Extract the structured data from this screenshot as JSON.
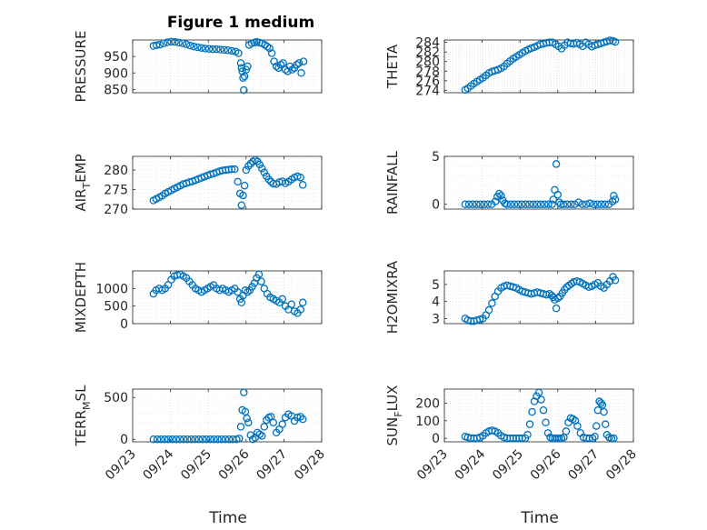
{
  "figure": {
    "title": "Figure 1 medium"
  },
  "chart_data": {
    "type": "scatter",
    "xlabel": "Time",
    "xlim": [
      "09/23",
      "09/28"
    ],
    "x_ticks": [
      "09/23",
      "09/24",
      "09/25",
      "09/26",
      "09/27",
      "09/28"
    ],
    "grid": true,
    "marker": "open-circle",
    "color": "#0072BD",
    "panels": [
      {
        "ylabel": "PRESSURE",
        "ylim": [
          840,
          1000
        ],
        "y_ticks": [
          850,
          900,
          950
        ],
        "series": [
          {
            "x": [
              0.55,
              0.63,
              0.72,
              0.82,
              0.92,
              1.02,
              1.12,
              1.22,
              1.32,
              1.42,
              1.52,
              1.62,
              1.72,
              1.82,
              1.92,
              2.02,
              2.12,
              2.22,
              2.32,
              2.42,
              2.52,
              2.62,
              2.72,
              2.8,
              2.86,
              2.88,
              2.9,
              2.92,
              2.94,
              2.96,
              3.0,
              3.04,
              3.08,
              3.15,
              3.22,
              3.28,
              3.35,
              3.42,
              3.5,
              3.56,
              3.62,
              3.68,
              3.74,
              3.8,
              3.86,
              3.92,
              3.98,
              4.04,
              4.1,
              4.16,
              4.22,
              4.28,
              4.34,
              4.4,
              4.46,
              4.52
            ],
            "y": [
              982,
              984,
              986,
              990,
              993,
              995,
              994,
              992,
              990,
              987,
              983,
              980,
              978,
              976,
              974,
              973,
              972,
              972,
              971,
              970,
              969,
              967,
              965,
              960,
              930,
              915,
              905,
              885,
              848,
              890,
              910,
              920,
              985,
              990,
              992,
              994,
              992,
              990,
              985,
              980,
              975,
              960,
              935,
              920,
              915,
              925,
              930,
              910,
              905,
              920,
              910,
              915,
              925,
              930,
              900,
              935
            ]
          }
        ]
      },
      {
        "ylabel": "THETA",
        "ylim": [
          273.5,
          284.5
        ],
        "y_ticks": [
          274,
          276,
          278,
          280,
          282,
          284
        ],
        "series": [
          {
            "x": [
              0.55,
              0.62,
              0.7,
              0.78,
              0.86,
              0.94,
              1.02,
              1.1,
              1.18,
              1.26,
              1.34,
              1.42,
              1.5,
              1.58,
              1.66,
              1.74,
              1.82,
              1.9,
              1.98,
              2.06,
              2.14,
              2.22,
              2.3,
              2.38,
              2.46,
              2.54,
              2.62,
              2.7,
              2.78,
              2.86,
              2.94,
              3.02,
              3.1,
              3.18,
              3.26,
              3.34,
              3.42,
              3.5,
              3.58,
              3.66,
              3.74,
              3.82,
              3.9,
              3.98,
              4.06,
              4.14,
              4.22,
              4.3,
              4.38,
              4.46,
              4.52
            ],
            "y": [
              274.1,
              274.4,
              274.9,
              275.4,
              275.8,
              276.2,
              276.6,
              277.1,
              277.6,
              277.9,
              278.1,
              278.3,
              278.6,
              279.0,
              279.6,
              280.1,
              280.6,
              281.0,
              281.4,
              281.8,
              282.2,
              282.5,
              282.8,
              283.0,
              283.3,
              283.6,
              283.7,
              283.9,
              284.0,
              284.0,
              283.6,
              283.2,
              282.7,
              283.4,
              284.0,
              283.8,
              283.7,
              283.9,
              283.6,
              283.2,
              284.0,
              283.6,
              283.1,
              283.4,
              283.6,
              283.8,
              284.0,
              284.2,
              284.4,
              284.3,
              284.1
            ]
          }
        ]
      },
      {
        "ylabel": "AIR_TEMP",
        "ylim": [
          270,
          283.5
        ],
        "y_ticks": [
          270,
          275,
          280
        ],
        "series": [
          {
            "x": [
              0.55,
              0.62,
              0.7,
              0.78,
              0.86,
              0.94,
              1.02,
              1.1,
              1.18,
              1.26,
              1.34,
              1.42,
              1.5,
              1.58,
              1.66,
              1.74,
              1.82,
              1.9,
              1.98,
              2.06,
              2.14,
              2.22,
              2.3,
              2.38,
              2.46,
              2.54,
              2.62,
              2.7,
              2.78,
              2.84,
              2.88,
              2.92,
              2.96,
              3.0,
              3.06,
              3.12,
              3.18,
              3.24,
              3.3,
              3.36,
              3.42,
              3.48,
              3.54,
              3.6,
              3.66,
              3.72,
              3.8,
              3.88,
              3.96,
              4.04,
              4.12,
              4.2,
              4.28,
              4.36,
              4.44,
              4.5
            ],
            "y": [
              272.2,
              272.6,
              273.0,
              273.4,
              274.0,
              274.4,
              274.8,
              275.2,
              275.6,
              276.0,
              276.4,
              276.6,
              276.9,
              277.1,
              277.4,
              277.7,
              278.0,
              278.3,
              278.6,
              278.9,
              279.1,
              279.4,
              279.7,
              279.9,
              280.0,
              280.1,
              280.2,
              280.2,
              277.0,
              274.0,
              271.0,
              273.5,
              276.0,
              280.0,
              281.0,
              281.6,
              282.2,
              282.6,
              282.2,
              281.4,
              280.4,
              279.4,
              278.4,
              277.6,
              277.0,
              276.5,
              276.4,
              276.9,
              277.1,
              276.6,
              277.0,
              277.6,
              278.1,
              278.4,
              278.1,
              276.2
            ]
          }
        ]
      },
      {
        "ylabel": "RAINFALL",
        "ylim": [
          -0.5,
          5
        ],
        "y_ticks": [
          0,
          5
        ],
        "series": [
          {
            "x": [
              0.55,
              0.65,
              0.75,
              0.85,
              0.95,
              1.05,
              1.15,
              1.25,
              1.35,
              1.4,
              1.45,
              1.5,
              1.55,
              1.6,
              1.65,
              1.75,
              1.85,
              1.95,
              2.05,
              2.15,
              2.25,
              2.35,
              2.45,
              2.55,
              2.65,
              2.75,
              2.85,
              2.88,
              2.92,
              2.96,
              3.0,
              3.04,
              3.08,
              3.15,
              3.25,
              3.35,
              3.45,
              3.55,
              3.65,
              3.75,
              3.85,
              3.95,
              4.05,
              4.15,
              4.25,
              4.35,
              4.45,
              4.48,
              4.52
            ],
            "y": [
              0,
              0,
              0,
              0,
              0,
              0,
              0,
              0,
              0.3,
              0.8,
              1.1,
              0.9,
              0.4,
              0.1,
              0,
              0,
              0,
              0,
              0,
              0,
              0,
              0,
              0,
              0,
              0,
              0,
              0,
              0.5,
              1.5,
              4.2,
              1.0,
              0.2,
              0,
              0,
              0,
              0,
              0,
              0.2,
              0,
              0,
              0.1,
              0,
              0,
              0,
              0,
              0,
              0.3,
              0.9,
              0.5
            ]
          }
        ]
      },
      {
        "ylabel": "MIXDEPTH",
        "ylim": [
          0,
          1500
        ],
        "y_ticks": [
          0,
          500,
          1000
        ],
        "series": [
          {
            "x": [
              0.55,
              0.62,
              0.7,
              0.78,
              0.86,
              0.94,
              1.02,
              1.1,
              1.18,
              1.26,
              1.34,
              1.42,
              1.5,
              1.58,
              1.66,
              1.74,
              1.82,
              1.9,
              1.98,
              2.06,
              2.14,
              2.22,
              2.3,
              2.38,
              2.46,
              2.54,
              2.62,
              2.7,
              2.78,
              2.84,
              2.88,
              2.92,
              2.98,
              3.04,
              3.1,
              3.16,
              3.22,
              3.28,
              3.34,
              3.4,
              3.48,
              3.56,
              3.64,
              3.72,
              3.8,
              3.88,
              3.96,
              4.04,
              4.12,
              4.2,
              4.28,
              4.36,
              4.44,
              4.5
            ],
            "y": [
              850,
              950,
              1000,
              950,
              1000,
              1100,
              1250,
              1350,
              1380,
              1400,
              1350,
              1300,
              1200,
              1100,
              1000,
              950,
              900,
              950,
              1000,
              1050,
              1100,
              1000,
              950,
              1000,
              950,
              900,
              950,
              1000,
              900,
              700,
              600,
              800,
              950,
              900,
              950,
              1050,
              1150,
              1300,
              1400,
              1200,
              1000,
              850,
              750,
              700,
              650,
              600,
              700,
              500,
              400,
              550,
              350,
              300,
              400,
              600
            ]
          }
        ]
      },
      {
        "ylabel": "H2OMIXRA",
        "ylim": [
          2.7,
          5.8
        ],
        "y_ticks": [
          3,
          4,
          5
        ],
        "series": [
          {
            "x": [
              0.55,
              0.62,
              0.7,
              0.78,
              0.86,
              0.94,
              1.02,
              1.1,
              1.18,
              1.26,
              1.34,
              1.42,
              1.5,
              1.58,
              1.66,
              1.74,
              1.82,
              1.9,
              1.98,
              2.06,
              2.14,
              2.22,
              2.3,
              2.38,
              2.46,
              2.54,
              2.62,
              2.7,
              2.78,
              2.84,
              2.88,
              2.92,
              2.96,
              3.0,
              3.06,
              3.12,
              3.18,
              3.24,
              3.3,
              3.36,
              3.42,
              3.5,
              3.58,
              3.66,
              3.74,
              3.82,
              3.9,
              3.98,
              4.06,
              4.14,
              4.22,
              4.3,
              4.38,
              4.46,
              4.52
            ],
            "y": [
              3.0,
              2.9,
              2.85,
              2.85,
              2.9,
              2.95,
              3.0,
              3.2,
              3.5,
              3.9,
              4.3,
              4.6,
              4.8,
              4.9,
              4.95,
              4.9,
              4.85,
              4.8,
              4.7,
              4.6,
              4.55,
              4.5,
              4.45,
              4.5,
              4.55,
              4.5,
              4.45,
              4.4,
              4.45,
              4.35,
              4.25,
              4.1,
              3.6,
              4.2,
              4.3,
              4.5,
              4.7,
              4.85,
              4.95,
              5.05,
              5.15,
              5.2,
              5.15,
              5.05,
              4.95,
              4.85,
              4.9,
              5.0,
              5.1,
              4.9,
              4.8,
              5.0,
              5.2,
              5.45,
              5.25
            ]
          }
        ]
      },
      {
        "ylabel": "TERR_MSL",
        "ylim": [
          -30,
          600
        ],
        "y_ticks": [
          0,
          500
        ],
        "series": [
          {
            "x": [
              0.55,
              0.65,
              0.75,
              0.85,
              0.95,
              1.05,
              1.15,
              1.25,
              1.35,
              1.45,
              1.55,
              1.65,
              1.75,
              1.85,
              1.95,
              2.05,
              2.15,
              2.25,
              2.35,
              2.45,
              2.55,
              2.65,
              2.75,
              2.82,
              2.86,
              2.9,
              2.94,
              2.98,
              3.02,
              3.06,
              3.12,
              3.18,
              3.24,
              3.3,
              3.36,
              3.42,
              3.48,
              3.54,
              3.6,
              3.66,
              3.72,
              3.8,
              3.88,
              3.96,
              4.04,
              4.12,
              4.2,
              4.28,
              4.36,
              4.44,
              4.5
            ],
            "y": [
              0,
              0,
              0,
              0,
              0,
              0,
              0,
              0,
              0,
              0,
              0,
              0,
              0,
              0,
              0,
              0,
              0,
              0,
              0,
              0,
              0,
              0,
              0,
              10,
              150,
              350,
              560,
              330,
              250,
              200,
              50,
              0,
              20,
              80,
              60,
              40,
              150,
              230,
              260,
              270,
              200,
              80,
              120,
              180,
              260,
              300,
              280,
              220,
              260,
              270,
              240
            ]
          }
        ]
      },
      {
        "ylabel": "SUN_FLUX",
        "ylim": [
          -20,
          280
        ],
        "y_ticks": [
          0,
          100,
          200
        ],
        "series": [
          {
            "x": [
              0.55,
              0.62,
              0.7,
              0.78,
              0.86,
              0.94,
              1.02,
              1.1,
              1.18,
              1.26,
              1.34,
              1.42,
              1.5,
              1.58,
              1.66,
              1.74,
              1.82,
              1.9,
              1.98,
              2.06,
              2.14,
              2.2,
              2.26,
              2.32,
              2.38,
              2.44,
              2.5,
              2.56,
              2.62,
              2.68,
              2.74,
              2.8,
              2.86,
              2.92,
              2.98,
              3.04,
              3.1,
              3.16,
              3.22,
              3.28,
              3.34,
              3.4,
              3.46,
              3.52,
              3.6,
              3.68,
              3.76,
              3.84,
              3.92,
              3.98,
              4.02,
              4.06,
              4.1,
              4.14,
              4.18,
              4.22,
              4.26,
              4.3,
              4.36,
              4.42,
              4.48
            ],
            "y": [
              10,
              5,
              0,
              0,
              0,
              5,
              15,
              30,
              40,
              45,
              40,
              30,
              15,
              5,
              0,
              0,
              0,
              0,
              0,
              0,
              0,
              20,
              80,
              150,
              210,
              240,
              260,
              220,
              160,
              90,
              30,
              5,
              0,
              0,
              0,
              0,
              0,
              5,
              40,
              90,
              115,
              110,
              100,
              70,
              30,
              5,
              0,
              0,
              0,
              10,
              70,
              160,
              210,
              200,
              190,
              150,
              80,
              20,
              5,
              0,
              0
            ]
          }
        ]
      }
    ]
  }
}
